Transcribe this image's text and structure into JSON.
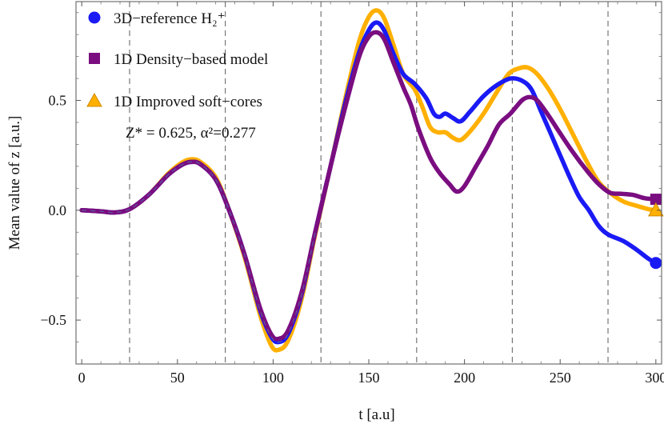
{
  "chart_data": {
    "type": "line",
    "xlabel": "t  [a.u]",
    "ylabel": "Mean value of  z   [a.u.]",
    "xlim": [
      -3,
      303
    ],
    "ylim": [
      -0.7,
      0.95
    ],
    "xticks": [
      0,
      50,
      100,
      150,
      200,
      250,
      300
    ],
    "yticks": [
      -0.5,
      0.0,
      0.5
    ],
    "ytick_labels": [
      "−0.5",
      "0.0",
      "0.5"
    ],
    "vlines": [
      25,
      75,
      125,
      175,
      225,
      275
    ],
    "annotation": "Z* = 0.625, α²=0.277",
    "series": [
      {
        "name": "3D−reference H₂⁺",
        "color": "#1a1af5",
        "marker": "circle",
        "points": [
          [
            0,
            0
          ],
          [
            10,
            -0.005
          ],
          [
            17,
            -0.01
          ],
          [
            25,
            0.005
          ],
          [
            35,
            0.07
          ],
          [
            45,
            0.16
          ],
          [
            52,
            0.205
          ],
          [
            57,
            0.22
          ],
          [
            62,
            0.21
          ],
          [
            70,
            0.14
          ],
          [
            77,
            0.0
          ],
          [
            85,
            -0.2
          ],
          [
            93,
            -0.45
          ],
          [
            99,
            -0.575
          ],
          [
            103,
            -0.6
          ],
          [
            108,
            -0.56
          ],
          [
            115,
            -0.38
          ],
          [
            122,
            -0.1
          ],
          [
            130,
            0.2
          ],
          [
            138,
            0.5
          ],
          [
            145,
            0.72
          ],
          [
            150,
            0.82
          ],
          [
            154,
            0.855
          ],
          [
            158,
            0.82
          ],
          [
            163,
            0.71
          ],
          [
            168,
            0.62
          ],
          [
            174,
            0.575
          ],
          [
            180,
            0.51
          ],
          [
            184,
            0.44
          ],
          [
            187,
            0.425
          ],
          [
            190,
            0.44
          ],
          [
            194,
            0.42
          ],
          [
            198,
            0.405
          ],
          [
            203,
            0.45
          ],
          [
            210,
            0.52
          ],
          [
            217,
            0.57
          ],
          [
            224,
            0.6
          ],
          [
            230,
            0.59
          ],
          [
            235,
            0.55
          ],
          [
            240,
            0.45
          ],
          [
            245,
            0.35
          ],
          [
            250,
            0.25
          ],
          [
            255,
            0.15
          ],
          [
            260,
            0.06
          ],
          [
            265,
            0.0
          ],
          [
            270,
            -0.07
          ],
          [
            275,
            -0.11
          ],
          [
            283,
            -0.14
          ],
          [
            290,
            -0.18
          ],
          [
            296,
            -0.22
          ],
          [
            300,
            -0.24
          ]
        ]
      },
      {
        "name": "1D Density−based model",
        "color": "#7a0d80",
        "marker": "square",
        "points": [
          [
            0,
            0
          ],
          [
            10,
            -0.005
          ],
          [
            17,
            -0.01
          ],
          [
            25,
            0.005
          ],
          [
            35,
            0.07
          ],
          [
            45,
            0.16
          ],
          [
            52,
            0.205
          ],
          [
            57,
            0.22
          ],
          [
            62,
            0.21
          ],
          [
            70,
            0.14
          ],
          [
            77,
            0.0
          ],
          [
            85,
            -0.2
          ],
          [
            93,
            -0.44
          ],
          [
            99,
            -0.565
          ],
          [
            103,
            -0.585
          ],
          [
            108,
            -0.545
          ],
          [
            115,
            -0.37
          ],
          [
            122,
            -0.1
          ],
          [
            130,
            0.2
          ],
          [
            138,
            0.48
          ],
          [
            145,
            0.7
          ],
          [
            150,
            0.79
          ],
          [
            154,
            0.81
          ],
          [
            158,
            0.78
          ],
          [
            163,
            0.67
          ],
          [
            168,
            0.56
          ],
          [
            172,
            0.48
          ],
          [
            176,
            0.37
          ],
          [
            182,
            0.24
          ],
          [
            187,
            0.17
          ],
          [
            192,
            0.12
          ],
          [
            196,
            0.085
          ],
          [
            200,
            0.11
          ],
          [
            206,
            0.2
          ],
          [
            212,
            0.29
          ],
          [
            218,
            0.39
          ],
          [
            224,
            0.44
          ],
          [
            230,
            0.5
          ],
          [
            234,
            0.515
          ],
          [
            238,
            0.5
          ],
          [
            244,
            0.43
          ],
          [
            250,
            0.35
          ],
          [
            257,
            0.26
          ],
          [
            264,
            0.18
          ],
          [
            270,
            0.12
          ],
          [
            276,
            0.08
          ],
          [
            282,
            0.075
          ],
          [
            288,
            0.07
          ],
          [
            294,
            0.055
          ],
          [
            300,
            0.05
          ]
        ]
      },
      {
        "name": "1D Improved soft−cores",
        "color": "#ffb000",
        "marker": "triangle",
        "points": [
          [
            0,
            0
          ],
          [
            10,
            -0.005
          ],
          [
            17,
            -0.01
          ],
          [
            25,
            0.005
          ],
          [
            35,
            0.07
          ],
          [
            45,
            0.165
          ],
          [
            52,
            0.215
          ],
          [
            57,
            0.232
          ],
          [
            62,
            0.22
          ],
          [
            70,
            0.15
          ],
          [
            77,
            0.0
          ],
          [
            85,
            -0.21
          ],
          [
            93,
            -0.47
          ],
          [
            99,
            -0.615
          ],
          [
            103,
            -0.635
          ],
          [
            108,
            -0.59
          ],
          [
            115,
            -0.4
          ],
          [
            122,
            -0.11
          ],
          [
            130,
            0.2
          ],
          [
            138,
            0.52
          ],
          [
            145,
            0.77
          ],
          [
            150,
            0.88
          ],
          [
            154,
            0.91
          ],
          [
            158,
            0.875
          ],
          [
            163,
            0.75
          ],
          [
            168,
            0.62
          ],
          [
            174,
            0.55
          ],
          [
            178,
            0.47
          ],
          [
            182,
            0.38
          ],
          [
            186,
            0.355
          ],
          [
            190,
            0.355
          ],
          [
            194,
            0.33
          ],
          [
            198,
            0.32
          ],
          [
            203,
            0.36
          ],
          [
            210,
            0.44
          ],
          [
            217,
            0.54
          ],
          [
            223,
            0.62
          ],
          [
            228,
            0.645
          ],
          [
            233,
            0.65
          ],
          [
            238,
            0.62
          ],
          [
            244,
            0.55
          ],
          [
            250,
            0.46
          ],
          [
            257,
            0.34
          ],
          [
            264,
            0.22
          ],
          [
            270,
            0.13
          ],
          [
            276,
            0.08
          ],
          [
            283,
            0.04
          ],
          [
            290,
            0.02
          ],
          [
            296,
            0.005
          ],
          [
            300,
            0.0
          ]
        ]
      }
    ]
  }
}
